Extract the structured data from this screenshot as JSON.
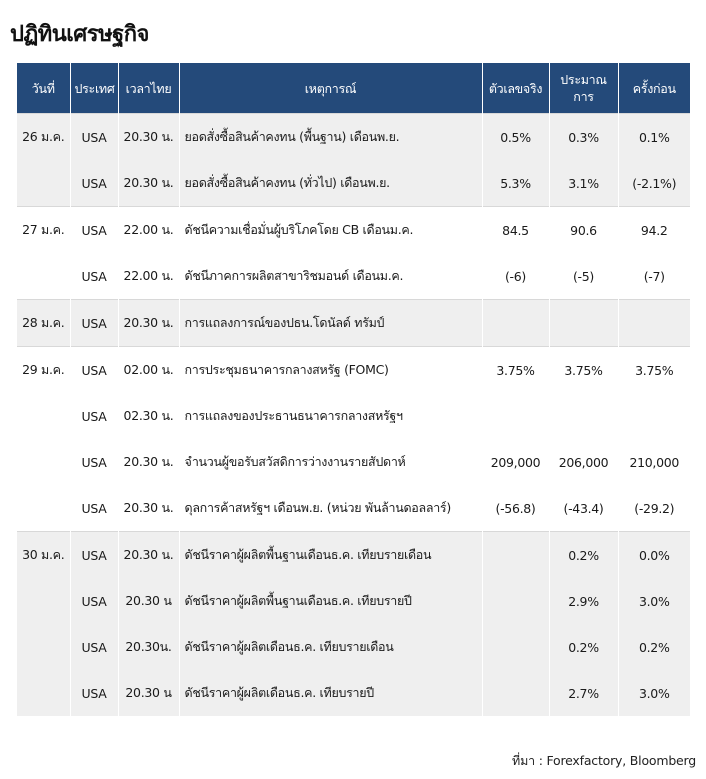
{
  "title": "ปฏิทินเศรษฐกิจ",
  "columns": {
    "date": "วันที่",
    "country": "ประเทศ",
    "time": "เวลาไทย",
    "event": "เหตุการณ์",
    "actual": "ตัวเลขจริง",
    "forecast": "ประมาณการ",
    "previous": "ครั้งก่อน"
  },
  "rows": [
    {
      "date": "26 ม.ค.",
      "country": "USA",
      "time": "20.30 น.",
      "event": "ยอดสั่งซื้อสินค้าคงทน (พื้นฐาน) เดือนพ.ย.",
      "actual": "0.5%",
      "forecast": "0.3%",
      "previous": "0.1%"
    },
    {
      "date": "",
      "country": "USA",
      "time": "20.30 น.",
      "event": "ยอดสั่งซื้อสินค้าคงทน (ทั่วไป) เดือนพ.ย.",
      "actual": "5.3%",
      "forecast": "3.1%",
      "previous": "(-2.1%)"
    },
    {
      "date": "27 ม.ค.",
      "country": "USA",
      "time": "22.00 น.",
      "event": "ดัชนีความเชื่อมั่นผู้บริโภคโดย CB เดือนม.ค.",
      "actual": "84.5",
      "forecast": "90.6",
      "previous": "94.2"
    },
    {
      "date": "",
      "country": "USA",
      "time": "22.00 น.",
      "event": "ดัชนีภาคการผลิตสาขาริชมอนด์ เดือนม.ค.",
      "actual": "(-6)",
      "forecast": "(-5)",
      "previous": "(-7)"
    },
    {
      "date": "28 ม.ค.",
      "country": "USA",
      "time": "20.30 น.",
      "event": "การแถลงการณ์ของปธน.โดนัลด์ ทรัมป์",
      "actual": "",
      "forecast": "",
      "previous": ""
    },
    {
      "date": "29 ม.ค.",
      "country": "USA",
      "time": "02.00 น.",
      "event": "การประชุมธนาคารกลางสหรัฐ (FOMC)",
      "actual": "3.75%",
      "forecast": "3.75%",
      "previous": "3.75%"
    },
    {
      "date": "",
      "country": "USA",
      "time": "02.30 น.",
      "event": "การแถลงของประธานธนาคารกลางสหรัฐฯ",
      "actual": "",
      "forecast": "",
      "previous": ""
    },
    {
      "date": "",
      "country": "USA",
      "time": "20.30 น.",
      "event": "จำนวนผู้ขอรับสวัสดิการว่างงานรายสัปดาห์",
      "actual": "209,000",
      "forecast": "206,000",
      "previous": "210,000"
    },
    {
      "date": "",
      "country": "USA",
      "time": "20.30 น.",
      "event": "ดุลการค้าสหรัฐฯ เดือนพ.ย. (หน่วย พันล้านดอลลาร์)",
      "actual": "(-56.8)",
      "forecast": "(-43.4)",
      "previous": "(-29.2)"
    },
    {
      "date": "30 ม.ค.",
      "country": "USA",
      "time": "20.30 น.",
      "event": "ดัชนีราคาผู้ผลิตพื้นฐานเดือนธ.ค. เทียบรายเดือน",
      "actual": "",
      "forecast": "0.2%",
      "previous": "0.0%"
    },
    {
      "date": "",
      "country": "USA",
      "time": "20.30 น",
      "event": "ดัชนีราคาผู้ผลิตพื้นฐานเดือนธ.ค. เทียบรายปี",
      "actual": "",
      "forecast": "2.9%",
      "previous": "3.0%"
    },
    {
      "date": "",
      "country": "USA",
      "time": "20.30น.",
      "event": "ดัชนีราคาผู้ผลิตเดือนธ.ค. เทียบรายเดือน",
      "actual": "",
      "forecast": "0.2%",
      "previous": "0.2%"
    },
    {
      "date": "",
      "country": "USA",
      "time": "20.30 น",
      "event": "ดัชนีราคาผู้ผลิตเดือนธ.ค. เทียบรายปี",
      "actual": "",
      "forecast": "2.7%",
      "previous": "3.0%"
    }
  ],
  "source": "ที่มา : Forexfactory, Bloomberg",
  "colors": {
    "header_bg": "#244a7a",
    "shade_bg": "#efefef"
  }
}
